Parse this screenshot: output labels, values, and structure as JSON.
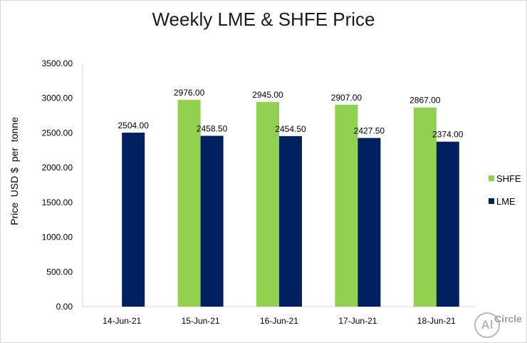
{
  "chart_data": {
    "type": "bar",
    "title": "Weekly LME & SHFE Price",
    "ylabel": "Price  USD $  per  tonne",
    "xlabel": "",
    "ylim": [
      0,
      3500
    ],
    "yticks": [
      "0.00",
      "500.00",
      "1000.00",
      "1500.00",
      "2000.00",
      "2500.00",
      "3000.00",
      "3500.00"
    ],
    "categories": [
      "14-Jun-21",
      "15-Jun-21",
      "16-Jun-21",
      "17-Jun-21",
      "18-Jun-21"
    ],
    "series": [
      {
        "name": "SHFE",
        "color": "#92d050",
        "values": [
          null,
          2976.0,
          2945.0,
          2907.0,
          2867.0
        ],
        "labels": [
          "",
          "2976.00",
          "2945.00",
          "2907.00",
          "2867.00"
        ]
      },
      {
        "name": "LME",
        "color": "#002060",
        "values": [
          2504.0,
          2458.5,
          2454.5,
          2427.5,
          2374.0
        ],
        "labels": [
          "2504.00",
          "2458.50",
          "2454.50",
          "2427.50",
          "2374.00"
        ]
      }
    ],
    "legend_position": "right",
    "grid": false
  },
  "watermark": {
    "symbol": "Al",
    "text": "Circle"
  }
}
